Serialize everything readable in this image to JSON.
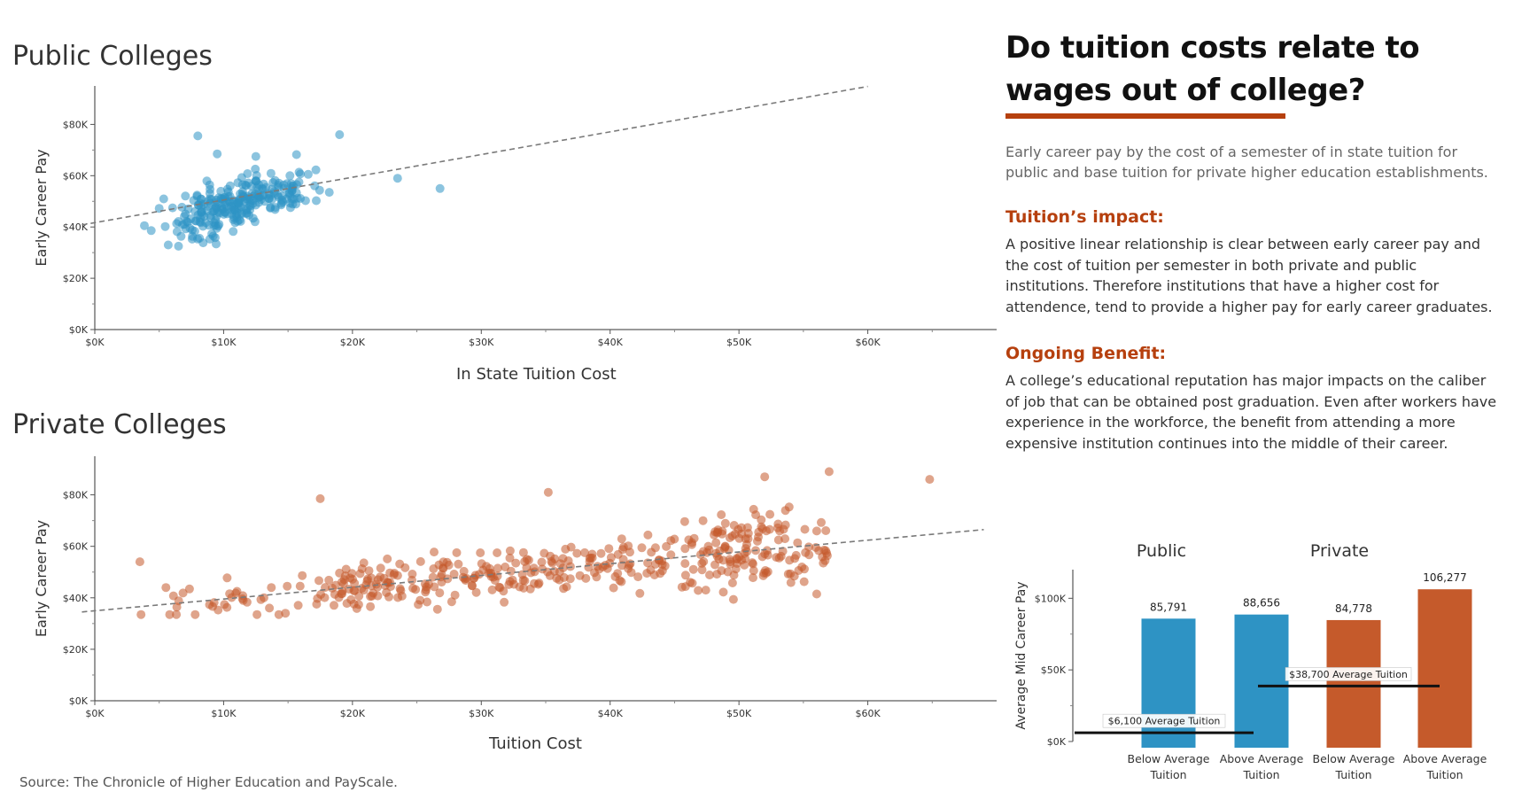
{
  "title": "Do tuition costs relate to wages out of college?",
  "intro": "Early career pay by the cost of a semester of in state tuition for public and base tuition for private higher education establishments.",
  "sections": [
    {
      "heading": "Tuition’s impact:",
      "body": "A positive linear relationship is clear between early career pay and the cost of tuition per semester in both private and public institutions. Therefore institutions that have a higher cost for attendence, tend to provide a higher pay for early career graduates."
    },
    {
      "heading": "Ongoing Benefit:",
      "body": "A college’s educational reputation has major impacts on the caliber of job that can be obtained post graduation. Even after workers have experience in the workforce, the benefit from attending a more expensive institution continues into the middle of their career."
    }
  ],
  "source": "Source: The Chronicle of Higher Education and PayScale.",
  "colors": {
    "public": "#2e93c4",
    "private": "#c55a2b",
    "accent": "#b6400e",
    "trend": "#7a7a7a"
  },
  "chart_data": [
    {
      "type": "scatter",
      "title": "Public Colleges",
      "xlabel": "In State Tuition Cost",
      "ylabel": "Early Career Pay",
      "x_ticks": [
        "$0K",
        "$10K",
        "$20K",
        "$30K",
        "$40K",
        "$50K",
        "$60K"
      ],
      "y_ticks": [
        "$0K",
        "$20K",
        "$40K",
        "$60K",
        "$80K"
      ],
      "xlim": [
        0,
        70000
      ],
      "ylim": [
        0,
        95000
      ],
      "trendline": {
        "x": [
          -1000,
          60000
        ],
        "y": [
          40800,
          94800
        ]
      },
      "point_count": 260,
      "notable_points": [
        {
          "x": 8000,
          "y": 75500
        },
        {
          "x": 19000,
          "y": 76000
        },
        {
          "x": 23500,
          "y": 59000
        },
        {
          "x": 26800,
          "y": 55000
        },
        {
          "x": 18200,
          "y": 53500
        },
        {
          "x": 6500,
          "y": 32500
        },
        {
          "x": 12500,
          "y": 67500
        },
        {
          "x": 9500,
          "y": 68500
        }
      ]
    },
    {
      "type": "scatter",
      "title": "Private Colleges",
      "xlabel": "Tuition Cost",
      "ylabel": "Early Career Pay",
      "x_ticks": [
        "$0K",
        "$10K",
        "$20K",
        "$30K",
        "$40K",
        "$50K",
        "$60K"
      ],
      "y_ticks": [
        "$0K",
        "$20K",
        "$40K",
        "$60K",
        "$80K"
      ],
      "xlim": [
        0,
        70000
      ],
      "ylim": [
        0,
        95000
      ],
      "trendline": {
        "x": [
          -1000,
          69000
        ],
        "y": [
          34500,
          66500
        ]
      },
      "point_count": 430,
      "notable_points": [
        {
          "x": 17500,
          "y": 78500
        },
        {
          "x": 35200,
          "y": 81000
        },
        {
          "x": 57000,
          "y": 89000
        },
        {
          "x": 64800,
          "y": 86000
        },
        {
          "x": 3500,
          "y": 54000
        },
        {
          "x": 14800,
          "y": 34000
        },
        {
          "x": 52000,
          "y": 87000
        }
      ]
    },
    {
      "type": "bar",
      "ylabel": "Average Mid Career Pay",
      "group_labels": [
        "Public",
        "Private"
      ],
      "categories": [
        "Below Average Tuition",
        "Above Average Tuition",
        "Below Average Tuition",
        "Above Average Tuition"
      ],
      "category_lines": [
        [
          "Below Average",
          "Tuition"
        ],
        [
          "Above Average",
          "Tuition"
        ],
        [
          "Below Average",
          "Tuition"
        ],
        [
          "Above Average",
          "Tuition"
        ]
      ],
      "values": [
        85791,
        88656,
        84778,
        106277
      ],
      "value_labels": [
        "85,791",
        "88,656",
        "84,778",
        "106,277"
      ],
      "groups": [
        "public",
        "public",
        "private",
        "private"
      ],
      "y_ticks": [
        "$0K",
        "$50K",
        "$100K"
      ],
      "ylim": [
        0,
        120000
      ],
      "reference_lines": [
        {
          "group": "Public",
          "value": 6100,
          "label": "$6,100 Average Tuition"
        },
        {
          "group": "Private",
          "value": 38700,
          "label": "$38,700 Average Tuition"
        }
      ]
    }
  ]
}
